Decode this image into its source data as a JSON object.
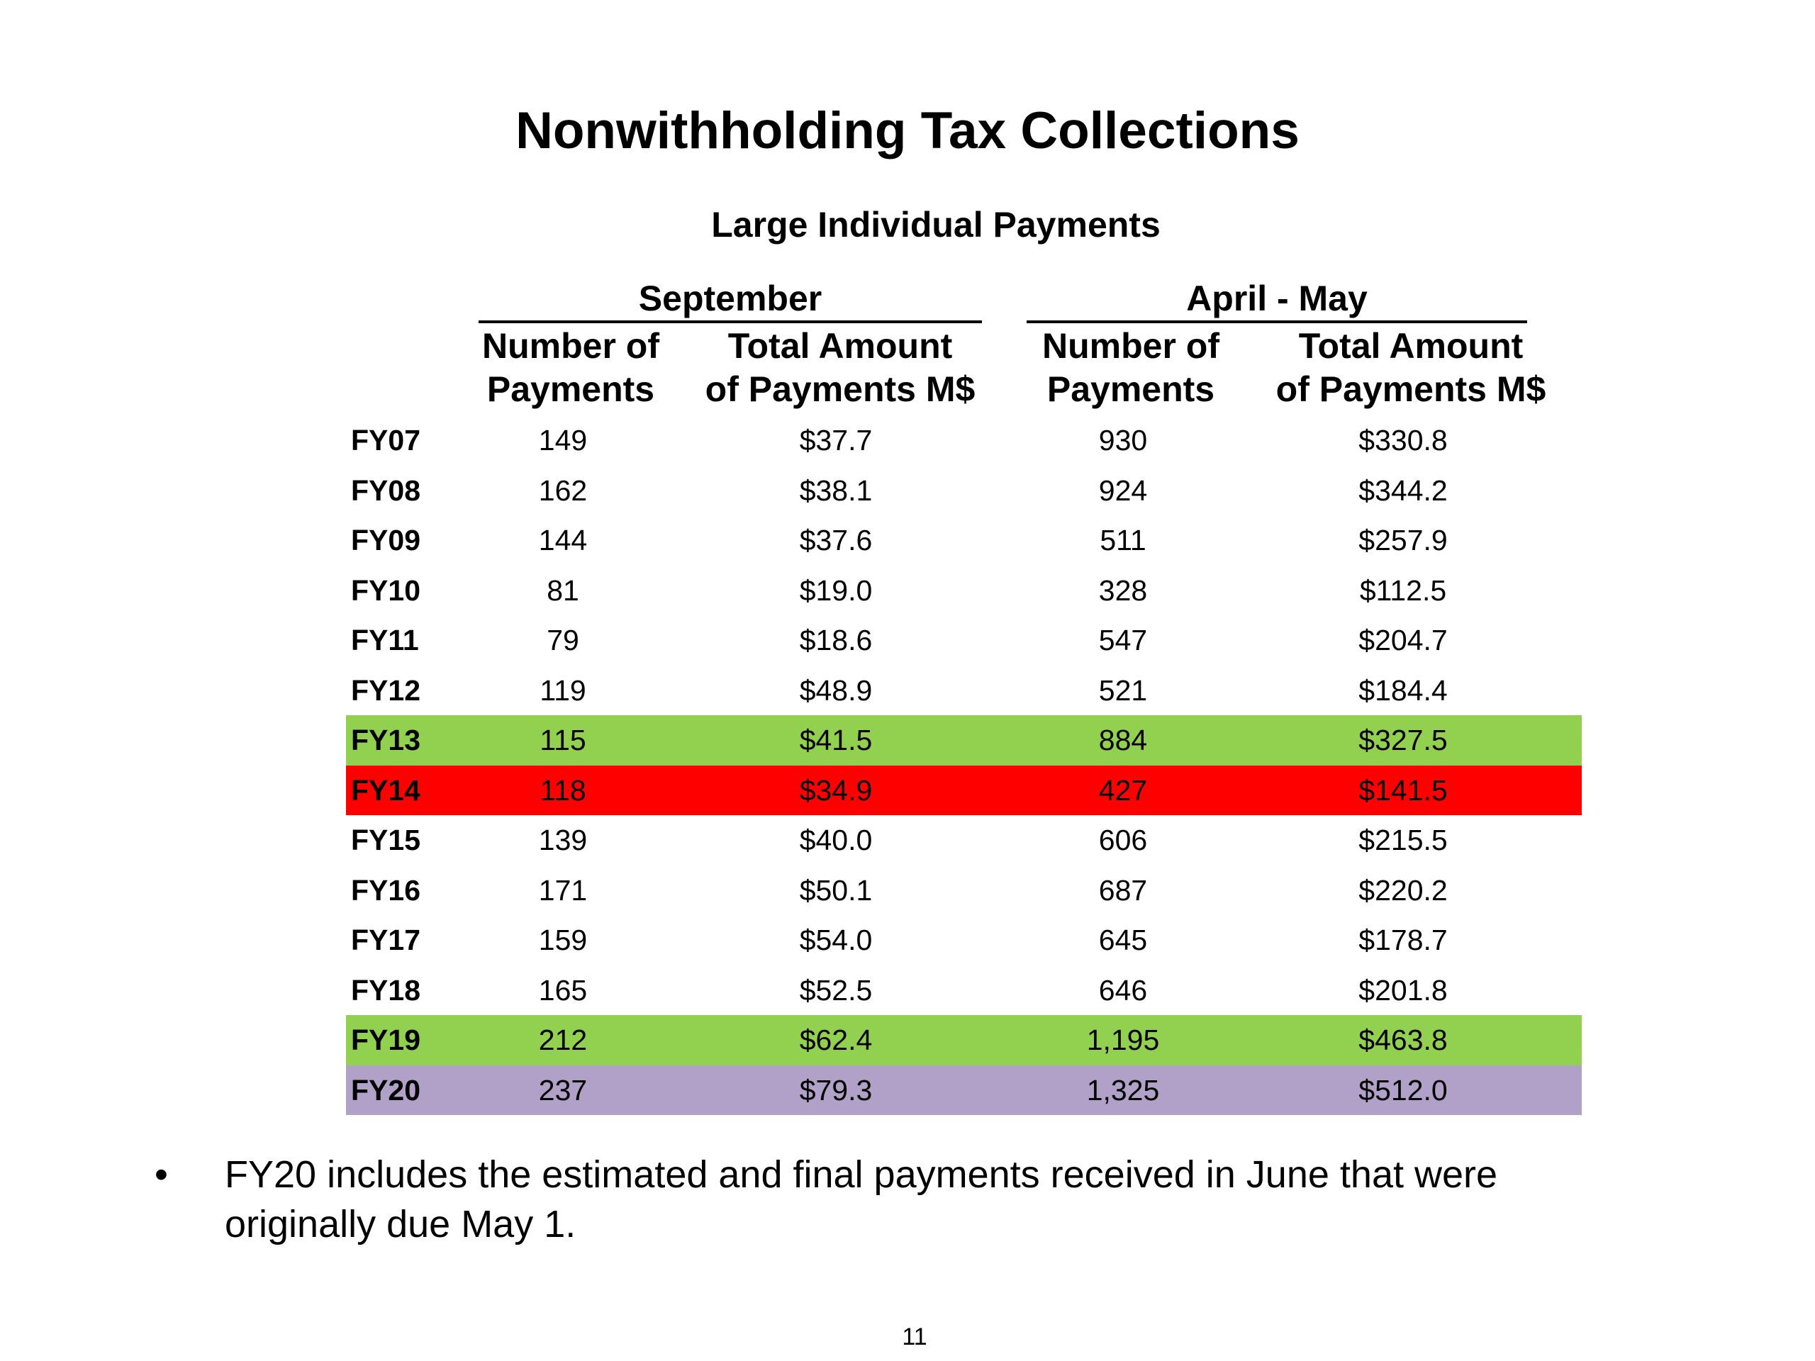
{
  "title": "Nonwithholding Tax Collections",
  "table": {
    "title": "Large Individual Payments",
    "groups": {
      "september": "September",
      "april_may": "April - May"
    },
    "columns": {
      "sep_number": "Number of\nPayments",
      "sep_amount": "Total Amount\nof Payments M$",
      "apr_number": "Number of\nPayments",
      "apr_amount": "Total Amount\nof Payments M$"
    },
    "rows": [
      {
        "fy": "FY07",
        "sep_number": "149",
        "sep_amount": "$37.7",
        "apr_number": "930",
        "apr_amount": "$330.8",
        "highlight": null
      },
      {
        "fy": "FY08",
        "sep_number": "162",
        "sep_amount": "$38.1",
        "apr_number": "924",
        "apr_amount": "$344.2",
        "highlight": null
      },
      {
        "fy": "FY09",
        "sep_number": "144",
        "sep_amount": "$37.6",
        "apr_number": "511",
        "apr_amount": "$257.9",
        "highlight": null
      },
      {
        "fy": "FY10",
        "sep_number": "81",
        "sep_amount": "$19.0",
        "apr_number": "328",
        "apr_amount": "$112.5",
        "highlight": null
      },
      {
        "fy": "FY11",
        "sep_number": "79",
        "sep_amount": "$18.6",
        "apr_number": "547",
        "apr_amount": "$204.7",
        "highlight": null
      },
      {
        "fy": "FY12",
        "sep_number": "119",
        "sep_amount": "$48.9",
        "apr_number": "521",
        "apr_amount": "$184.4",
        "highlight": null
      },
      {
        "fy": "FY13",
        "sep_number": "115",
        "sep_amount": "$41.5",
        "apr_number": "884",
        "apr_amount": "$327.5",
        "highlight": "#92d050"
      },
      {
        "fy": "FY14",
        "sep_number": "118",
        "sep_amount": "$34.9",
        "apr_number": "427",
        "apr_amount": "$141.5",
        "highlight": "#ff0000"
      },
      {
        "fy": "FY15",
        "sep_number": "139",
        "sep_amount": "$40.0",
        "apr_number": "606",
        "apr_amount": "$215.5",
        "highlight": null
      },
      {
        "fy": "FY16",
        "sep_number": "171",
        "sep_amount": "$50.1",
        "apr_number": "687",
        "apr_amount": "$220.2",
        "highlight": null
      },
      {
        "fy": "FY17",
        "sep_number": "159",
        "sep_amount": "$54.0",
        "apr_number": "645",
        "apr_amount": "$178.7",
        "highlight": null
      },
      {
        "fy": "FY18",
        "sep_number": "165",
        "sep_amount": "$52.5",
        "apr_number": "646",
        "apr_amount": "$201.8",
        "highlight": null
      },
      {
        "fy": "FY19",
        "sep_number": "212",
        "sep_amount": "$62.4",
        "apr_number": "1,195",
        "apr_amount": "$463.8",
        "highlight": "#92d050"
      },
      {
        "fy": "FY20",
        "sep_number": "237",
        "sep_amount": "$79.3",
        "apr_number": "1,325",
        "apr_amount": "$512.0",
        "highlight": "#b1a0c7"
      }
    ]
  },
  "note": {
    "bullet": "•",
    "text": "FY20 includes the estimated and final payments received in June that were originally due May 1."
  },
  "page_number": "11"
}
